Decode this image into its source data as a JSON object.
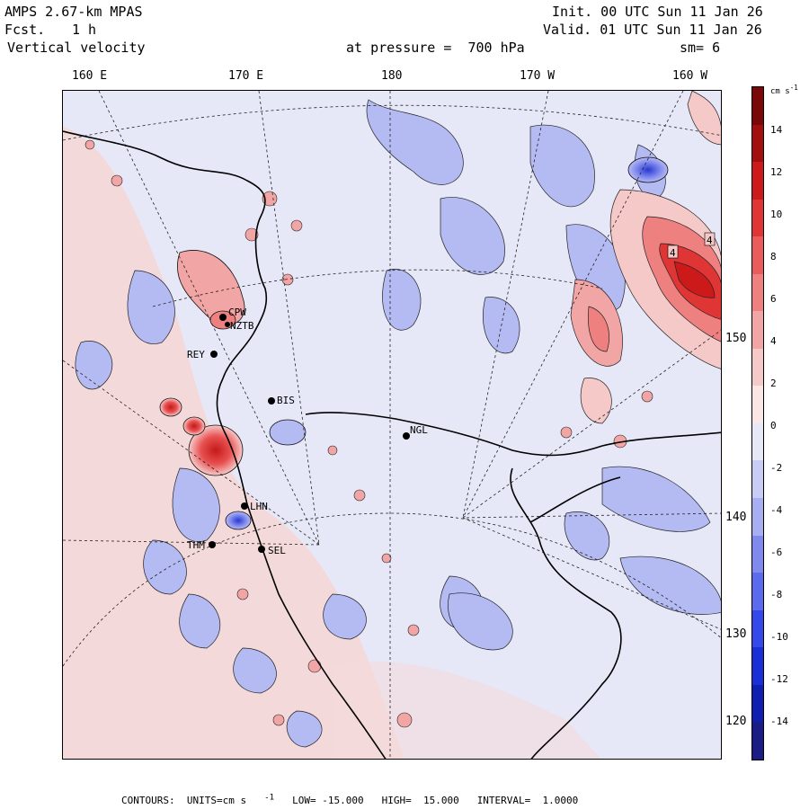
{
  "header": {
    "model": "AMPS 2.67-km MPAS",
    "fcst_label": "Fcst.",
    "fcst_value": "1 h",
    "field": "Vertical velocity",
    "pressure": "at pressure =  700 hPa",
    "init": "Init. 00 UTC Sun 11 Jan 26",
    "valid": "Valid. 01 UTC Sun 11 Jan 26",
    "smoothing": "sm= 6"
  },
  "longitude_labels": [
    "160 E",
    "170 E",
    "180",
    "170 W",
    "160 W"
  ],
  "latitude_labels": [
    "150 W",
    "140 W",
    "130 W",
    "120 W"
  ],
  "stations": [
    "CPW",
    "NZTB",
    "REY",
    "BIS",
    "NGL",
    "LHN",
    "THM",
    "SEL"
  ],
  "contour_labels": [
    "4",
    "4"
  ],
  "colorbar": {
    "units": "cm s",
    "units_exp": "-1",
    "tick_labels": [
      "14",
      "12",
      "10",
      "8",
      "6",
      "4",
      "2",
      "0",
      "-2",
      "-4",
      "-6",
      "-8",
      "-10",
      "-12",
      "-14"
    ],
    "colors": [
      "#1a1d84",
      "#0f1fb0",
      "#1a2fd6",
      "#3548ea",
      "#5c6aee",
      "#8089ee",
      "#a7aef2",
      "#c9cdf6",
      "#e6e8f8",
      "#fbe6e6",
      "#f6c9c9",
      "#f2a5a5",
      "#ee8080",
      "#ea5c5c",
      "#e03535",
      "#cc1a1a",
      "#a30f0f",
      "#7a0808"
    ]
  },
  "footer": {
    "contours": "CONTOURS:  UNITS=cm s",
    "units_exp": "-1",
    "low": "LOW= -15.000",
    "high": "HIGH=  15.000",
    "interval": "INTERVAL=  1.0000"
  },
  "colors": {
    "background": "#e6e8f8",
    "positive_light": "#f6d0d0",
    "negative_light": "#b4baf2",
    "strong_positive": "#e03535",
    "strong_negative": "#1a2fd6"
  }
}
